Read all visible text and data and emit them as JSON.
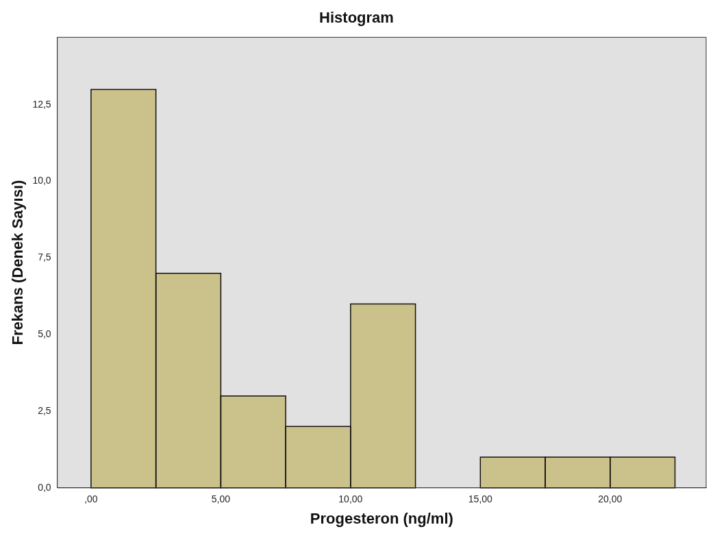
{
  "chart_data": {
    "type": "histogram",
    "title": "Histogram",
    "xlabel": "Progesteron (ng/ml)",
    "ylabel": "Frekans (Denek Sayısı)",
    "bins": [
      0,
      2.5,
      5,
      7.5,
      10,
      12.5,
      15,
      17.5,
      20,
      22.5
    ],
    "values": [
      13,
      7,
      3,
      2,
      6,
      0,
      1,
      1,
      1
    ],
    "color": "#cbc18a",
    "xlim": [
      -1.3,
      23.7
    ],
    "ylim": [
      0,
      14.7
    ],
    "xticks": [
      {
        "value": 0,
        "label": ",00"
      },
      {
        "value": 5,
        "label": "5,00"
      },
      {
        "value": 10,
        "label": "10,00"
      },
      {
        "value": 15,
        "label": "15,00"
      },
      {
        "value": 20,
        "label": "20,00"
      }
    ],
    "yticks": [
      {
        "value": 0,
        "label": "0,0"
      },
      {
        "value": 2.5,
        "label": "2,5"
      },
      {
        "value": 5,
        "label": "5,0"
      },
      {
        "value": 7.5,
        "label": "7,5"
      },
      {
        "value": 10,
        "label": "10,0"
      },
      {
        "value": 12.5,
        "label": "12,5"
      }
    ],
    "grid": false,
    "legend": false
  }
}
